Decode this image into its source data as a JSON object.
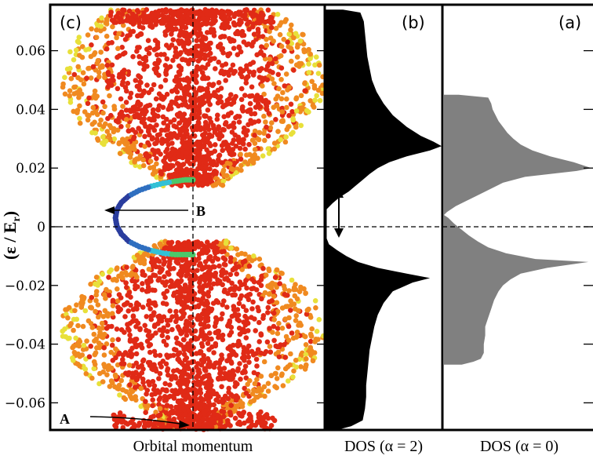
{
  "chart_data": [
    {
      "panel": "(c)",
      "type": "scatter",
      "xlabel": "Orbital momentum",
      "ylabel": "(ε / E",
      "ylabel_sub": "r",
      "ylabel_close": ")",
      "ylim": [
        -0.07,
        0.075
      ],
      "yticks": [
        0.06,
        0.04,
        0.02,
        0,
        -0.02,
        -0.04,
        -0.06
      ],
      "ytick_labels": [
        "0.06",
        "0.04",
        "0.02",
        "0",
        "−0.02",
        "−0.04",
        "−0.06"
      ],
      "grid": false,
      "reference_lines": {
        "vertical": "x = 0 (dashed)",
        "horizontal": "ε = 0 (dashed)"
      },
      "colormap": [
        "#2a3d9e",
        "#33c0d6",
        "#4cc86a",
        "#e8e03a",
        "#f08a20",
        "#e02a16"
      ],
      "upper_band": {
        "energy_range": [
          0.014,
          0.074
        ],
        "color": "orange-red"
      },
      "lower_band": {
        "energy_range": [
          -0.069,
          -0.005
        ],
        "color": "orange-red"
      },
      "edge_state": {
        "color": "blue-green",
        "points": [
          {
            "x": 0.0,
            "y": 0.016
          },
          {
            "x": -0.05,
            "y": 0.016
          },
          {
            "x": -0.12,
            "y": 0.0155
          },
          {
            "x": -0.2,
            "y": 0.0148
          },
          {
            "x": -0.28,
            "y": 0.0138
          },
          {
            "x": -0.36,
            "y": 0.0124
          },
          {
            "x": -0.43,
            "y": 0.0105
          },
          {
            "x": -0.48,
            "y": 0.0083
          },
          {
            "x": -0.51,
            "y": 0.0058
          },
          {
            "x": -0.52,
            "y": 0.003
          },
          {
            "x": -0.51,
            "y": 0.0002
          },
          {
            "x": -0.48,
            "y": -0.0025
          },
          {
            "x": -0.43,
            "y": -0.005
          },
          {
            "x": -0.36,
            "y": -0.0068
          },
          {
            "x": -0.28,
            "y": -0.0081
          },
          {
            "x": -0.2,
            "y": -0.009
          },
          {
            "x": -0.12,
            "y": -0.0095
          },
          {
            "x": -0.05,
            "y": -0.0095
          },
          {
            "x": 0.0,
            "y": -0.0095
          }
        ]
      },
      "annotations": [
        {
          "text": "A",
          "points_to": "bottom of spectrum at zero orbital momentum"
        },
        {
          "text": "B",
          "points_to": "edge state inside the gap"
        }
      ]
    },
    {
      "panel": "(b)",
      "type": "area",
      "xlabel": "DOS (α = 2)",
      "fill": "#000000",
      "gap_marker": "double-headed arrow spanning the gap",
      "series": [
        {
          "y": [
            0.074,
            0.073,
            0.07,
            0.066,
            0.062,
            0.058,
            0.054,
            0.05,
            0.046,
            0.042,
            0.038,
            0.034,
            0.031,
            0.029,
            0.0275,
            0.026,
            0.024,
            0.022,
            0.02,
            0.018,
            0.016,
            0.014,
            0.012,
            0.01,
            0.008,
            0.006,
            0.004,
            0.002,
            0.0,
            -0.002,
            -0.004,
            -0.006,
            -0.008,
            -0.01,
            -0.012,
            -0.014,
            -0.016,
            -0.0175,
            -0.019,
            -0.022,
            -0.026,
            -0.03,
            -0.034,
            -0.038,
            -0.042,
            -0.046,
            -0.05,
            -0.054,
            -0.058,
            -0.062,
            -0.066,
            -0.068,
            -0.069
          ],
          "dos": [
            0.15,
            0.3,
            0.33,
            0.34,
            0.35,
            0.36,
            0.38,
            0.4,
            0.44,
            0.5,
            0.58,
            0.7,
            0.82,
            0.93,
            1.0,
            0.9,
            0.7,
            0.55,
            0.45,
            0.38,
            0.32,
            0.26,
            0.2,
            0.12,
            0.06,
            0.01,
            0.01,
            0.01,
            0.01,
            0.01,
            0.01,
            0.03,
            0.1,
            0.18,
            0.28,
            0.45,
            0.7,
            0.9,
            0.75,
            0.58,
            0.5,
            0.45,
            0.42,
            0.4,
            0.38,
            0.37,
            0.36,
            0.35,
            0.35,
            0.34,
            0.32,
            0.22,
            0.12
          ]
        }
      ]
    },
    {
      "panel": "(a)",
      "type": "area",
      "xlabel": "DOS (α = 0)",
      "fill": "#808080",
      "series": [
        {
          "y": [
            0.045,
            0.044,
            0.042,
            0.04,
            0.038,
            0.036,
            0.034,
            0.032,
            0.03,
            0.028,
            0.026,
            0.024,
            0.022,
            0.02,
            0.019,
            0.017,
            0.015,
            0.013,
            0.011,
            0.009,
            0.007,
            0.005,
            0.004,
            0.003,
            0.001,
            -0.001,
            -0.003,
            -0.005,
            -0.007,
            -0.009,
            -0.011,
            -0.012,
            -0.014,
            -0.016,
            -0.018,
            -0.02,
            -0.022,
            -0.025,
            -0.028,
            -0.031,
            -0.034,
            -0.037,
            -0.04,
            -0.043,
            -0.045,
            -0.046,
            -0.047
          ],
          "dos": [
            0.1,
            0.3,
            0.32,
            0.33,
            0.35,
            0.37,
            0.4,
            0.43,
            0.47,
            0.52,
            0.6,
            0.72,
            0.88,
            1.0,
            0.9,
            0.55,
            0.4,
            0.32,
            0.24,
            0.16,
            0.08,
            0.02,
            0.0,
            0.03,
            0.07,
            0.12,
            0.17,
            0.23,
            0.3,
            0.42,
            0.62,
            0.98,
            0.7,
            0.52,
            0.45,
            0.4,
            0.37,
            0.34,
            0.32,
            0.3,
            0.28,
            0.28,
            0.27,
            0.27,
            0.25,
            0.2,
            0.12
          ]
        }
      ]
    }
  ]
}
